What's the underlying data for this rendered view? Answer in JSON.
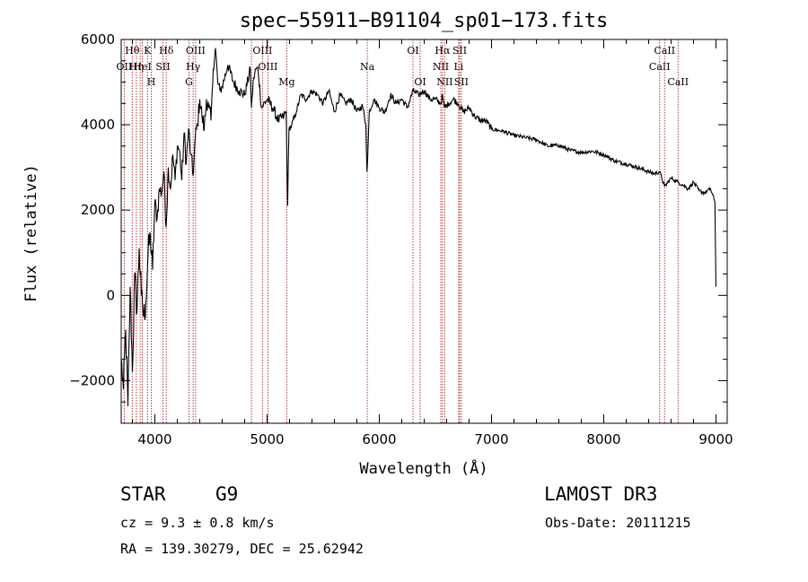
{
  "chart_data": {
    "type": "line",
    "title": "spec−55911−B91104_sp01−173.fits",
    "xlabel": "Wavelength (Å)",
    "ylabel": "Flux (relative)",
    "xlim": [
      3700,
      9100
    ],
    "ylim": [
      -3000,
      6000
    ],
    "xticks": [
      4000,
      5000,
      6000,
      7000,
      8000,
      9000
    ],
    "xtick_labels": [
      "4000",
      "5000",
      "6000",
      "7000",
      "8000",
      "9000"
    ],
    "yticks": [
      -2000,
      0,
      2000,
      4000,
      6000
    ],
    "ytick_labels": [
      "−2000",
      "0",
      "2000",
      "4000",
      "6000"
    ],
    "spectrum": {
      "x": [
        3700,
        3720,
        3740,
        3760,
        3780,
        3800,
        3820,
        3840,
        3860,
        3880,
        3900,
        3920,
        3940,
        3960,
        3980,
        4000,
        4020,
        4040,
        4060,
        4080,
        4100,
        4120,
        4140,
        4160,
        4180,
        4200,
        4220,
        4240,
        4260,
        4280,
        4300,
        4320,
        4340,
        4360,
        4380,
        4400,
        4420,
        4440,
        4460,
        4480,
        4500,
        4520,
        4540,
        4560,
        4580,
        4600,
        4650,
        4700,
        4750,
        4800,
        4850,
        4861,
        4880,
        4900,
        4920,
        4950,
        5000,
        5050,
        5100,
        5150,
        5170,
        5183,
        5195,
        5220,
        5260,
        5300,
        5350,
        5400,
        5450,
        5500,
        5550,
        5600,
        5650,
        5700,
        5750,
        5800,
        5850,
        5880,
        5890,
        5896,
        5910,
        5950,
        6000,
        6050,
        6100,
        6150,
        6200,
        6250,
        6300,
        6350,
        6400,
        6450,
        6500,
        6550,
        6563,
        6580,
        6620,
        6660,
        6700,
        6750,
        6800,
        6850,
        6900,
        6950,
        7000,
        7100,
        7200,
        7300,
        7400,
        7500,
        7600,
        7700,
        7800,
        7900,
        8000,
        8100,
        8200,
        8300,
        8400,
        8450,
        8498,
        8542,
        8600,
        8662,
        8700,
        8750,
        8800,
        8850,
        8900,
        8950,
        8990,
        9000
      ],
      "y": [
        -1500,
        -2200,
        -800,
        -2600,
        200,
        -1800,
        500,
        -400,
        1100,
        0,
        -500,
        -200,
        1000,
        1400,
        600,
        2200,
        1800,
        2500,
        2400,
        2900,
        1600,
        3000,
        2500,
        3300,
        2700,
        3500,
        3400,
        2700,
        3800,
        3100,
        3900,
        3300,
        2800,
        3700,
        4000,
        4600,
        4200,
        3900,
        4600,
        4400,
        4100,
        5300,
        5800,
        5000,
        4800,
        4900,
        5400,
        5000,
        4800,
        4700,
        5300,
        4400,
        5100,
        5300,
        5300,
        4400,
        4600,
        4400,
        4100,
        4200,
        4300,
        2100,
        3900,
        4000,
        4300,
        4700,
        4600,
        4800,
        4700,
        4500,
        4800,
        4300,
        4700,
        4500,
        4600,
        4300,
        4450,
        4000,
        2900,
        3200,
        4300,
        4600,
        4400,
        4300,
        4700,
        4500,
        4600,
        4400,
        4800,
        4700,
        4800,
        4600,
        4600,
        4500,
        4700,
        4400,
        4500,
        4600,
        4500,
        4300,
        4400,
        4200,
        4100,
        4100,
        3900,
        3850,
        3750,
        3700,
        3650,
        3500,
        3520,
        3400,
        3350,
        3380,
        3300,
        3150,
        3080,
        3000,
        2900,
        2850,
        2900,
        2550,
        2750,
        2650,
        2600,
        2500,
        2650,
        2450,
        2400,
        2500,
        2200,
        200
      ],
      "source": "flux digitized from the plotted curve"
    },
    "lines": [
      {
        "wave": 3727,
        "label": "OII",
        "row": 2
      },
      {
        "wave": 3798,
        "label": "Hθ",
        "row": 1
      },
      {
        "wave": 3835,
        "label": "Hη",
        "row": 2
      },
      {
        "wave": 3869,
        "label": "",
        "row": 2
      },
      {
        "wave": 3889,
        "label": "HeI",
        "row": 2
      },
      {
        "wave": 3934,
        "label": "K",
        "row": 1
      },
      {
        "wave": 3968,
        "label": "H",
        "row": 3
      },
      {
        "wave": 4072,
        "label": "SII",
        "row": 2
      },
      {
        "wave": 4102,
        "label": "Hδ",
        "row": 1
      },
      {
        "wave": 4304,
        "label": "G",
        "row": 3
      },
      {
        "wave": 4341,
        "label": "Hγ",
        "row": 2
      },
      {
        "wave": 4363,
        "label": "OIII",
        "row": 1
      },
      {
        "wave": 4861,
        "label": "",
        "row": 2
      },
      {
        "wave": 4959,
        "label": "OIII",
        "row": 1
      },
      {
        "wave": 5007,
        "label": "OIII",
        "row": 2
      },
      {
        "wave": 5175,
        "label": "Mg",
        "row": 3
      },
      {
        "wave": 5893,
        "label": "Na",
        "row": 2
      },
      {
        "wave": 6300,
        "label": "OI",
        "row": 1
      },
      {
        "wave": 6364,
        "label": "OI",
        "row": 3
      },
      {
        "wave": 6548,
        "label": "NII",
        "row": 2
      },
      {
        "wave": 6563,
        "label": "Hα",
        "row": 1
      },
      {
        "wave": 6583,
        "label": "NII",
        "row": 3
      },
      {
        "wave": 6707,
        "label": "Li",
        "row": 2
      },
      {
        "wave": 6716,
        "label": "SII",
        "row": 1
      },
      {
        "wave": 6731,
        "label": "SII",
        "row": 3
      },
      {
        "wave": 8498,
        "label": "CaII",
        "row": 2
      },
      {
        "wave": 8542,
        "label": "CaII",
        "row": 1
      },
      {
        "wave": 8662,
        "label": "CaII",
        "row": 3
      }
    ]
  },
  "footer": {
    "object_class": "STAR",
    "subclass": "G9",
    "survey": "LAMOST DR3",
    "cz": "cz = 9.3 ± 0.8 km/s",
    "obs_date": "Obs-Date: 20111215",
    "coords": "RA = 139.30279, DEC =  25.62942"
  },
  "colors": {
    "spectrum": "#000000",
    "line_markers": "#b22222",
    "background": "#ffffff"
  }
}
